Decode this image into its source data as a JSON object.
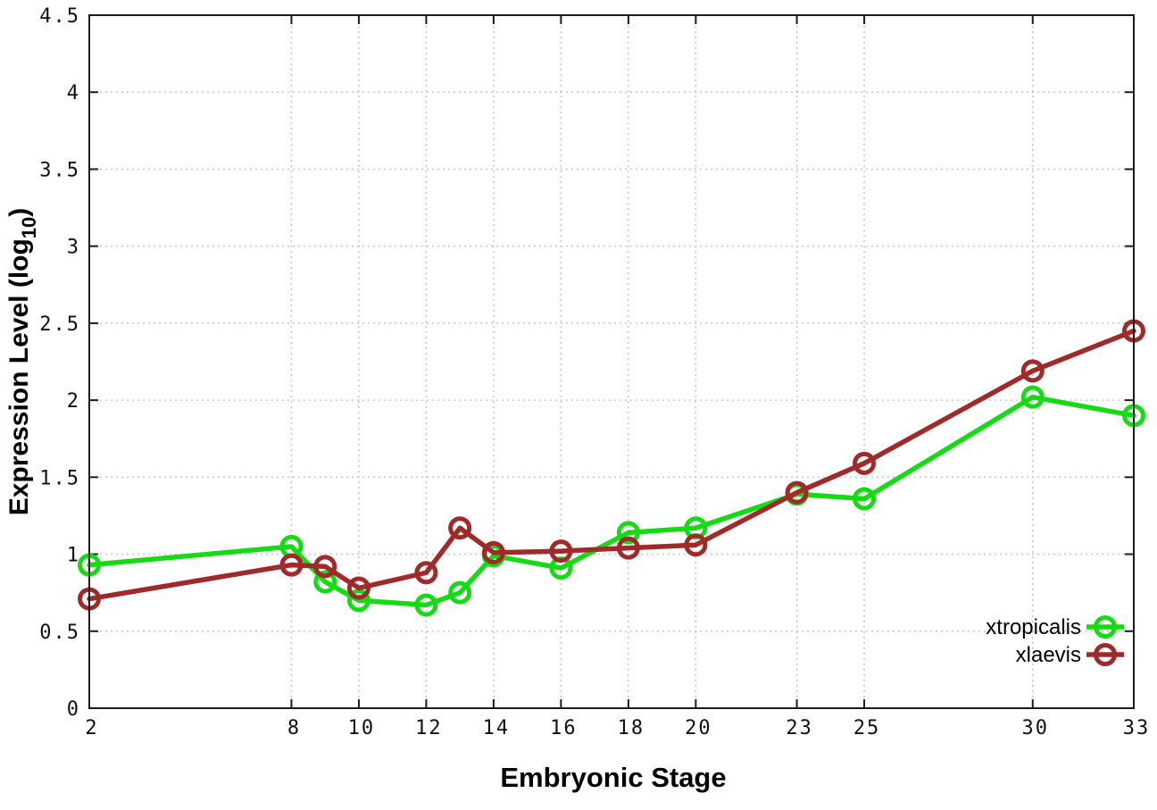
{
  "page": {
    "background": "#ffffff"
  },
  "chart_data": {
    "type": "line",
    "title": "",
    "xlabel": "Embryonic Stage",
    "ylabel": "Expression Level (log10)",
    "ylabel_parts": {
      "prefix": "Expression Level (log",
      "sub": "10",
      "suffix": ")"
    },
    "x": [
      2,
      8,
      9,
      10,
      12,
      13,
      14,
      16,
      18,
      20,
      23,
      25,
      30,
      33
    ],
    "xlim": [
      2,
      33
    ],
    "xticks": [
      2,
      8,
      10,
      12,
      14,
      16,
      18,
      20,
      23,
      25,
      30,
      33
    ],
    "xtick_labels": [
      "2",
      "8",
      "10",
      "12",
      "14",
      "16",
      "18",
      "20",
      "23",
      "25",
      "30",
      "33"
    ],
    "ylim": [
      0,
      4.5
    ],
    "yticks": [
      0,
      0.5,
      1,
      1.5,
      2,
      2.5,
      3,
      3.5,
      4,
      4.5
    ],
    "ytick_labels": [
      "0",
      "0.5",
      "1",
      "1.5",
      "2",
      "2.5",
      "3",
      "3.5",
      "4",
      "4.5"
    ],
    "grid": true,
    "legend": {
      "position": "inside-right-bottom"
    },
    "marker": "open-circle",
    "series": [
      {
        "name": "xtropicalis",
        "color": "#15db15",
        "values": [
          0.93,
          1.05,
          0.82,
          0.7,
          0.67,
          0.75,
          0.99,
          0.91,
          1.14,
          1.17,
          1.39,
          1.36,
          2.02,
          1.9
        ]
      },
      {
        "name": "xlaevis",
        "color": "#a02a2a",
        "values": [
          0.71,
          0.93,
          0.92,
          0.78,
          0.88,
          1.17,
          1.01,
          1.02,
          1.04,
          1.06,
          1.4,
          1.59,
          2.19,
          2.45
        ]
      }
    ],
    "colors": {
      "grid": "#c6c6c6",
      "axis": "#1c1c1c",
      "text": "#000000",
      "background": "#ffffff"
    }
  }
}
